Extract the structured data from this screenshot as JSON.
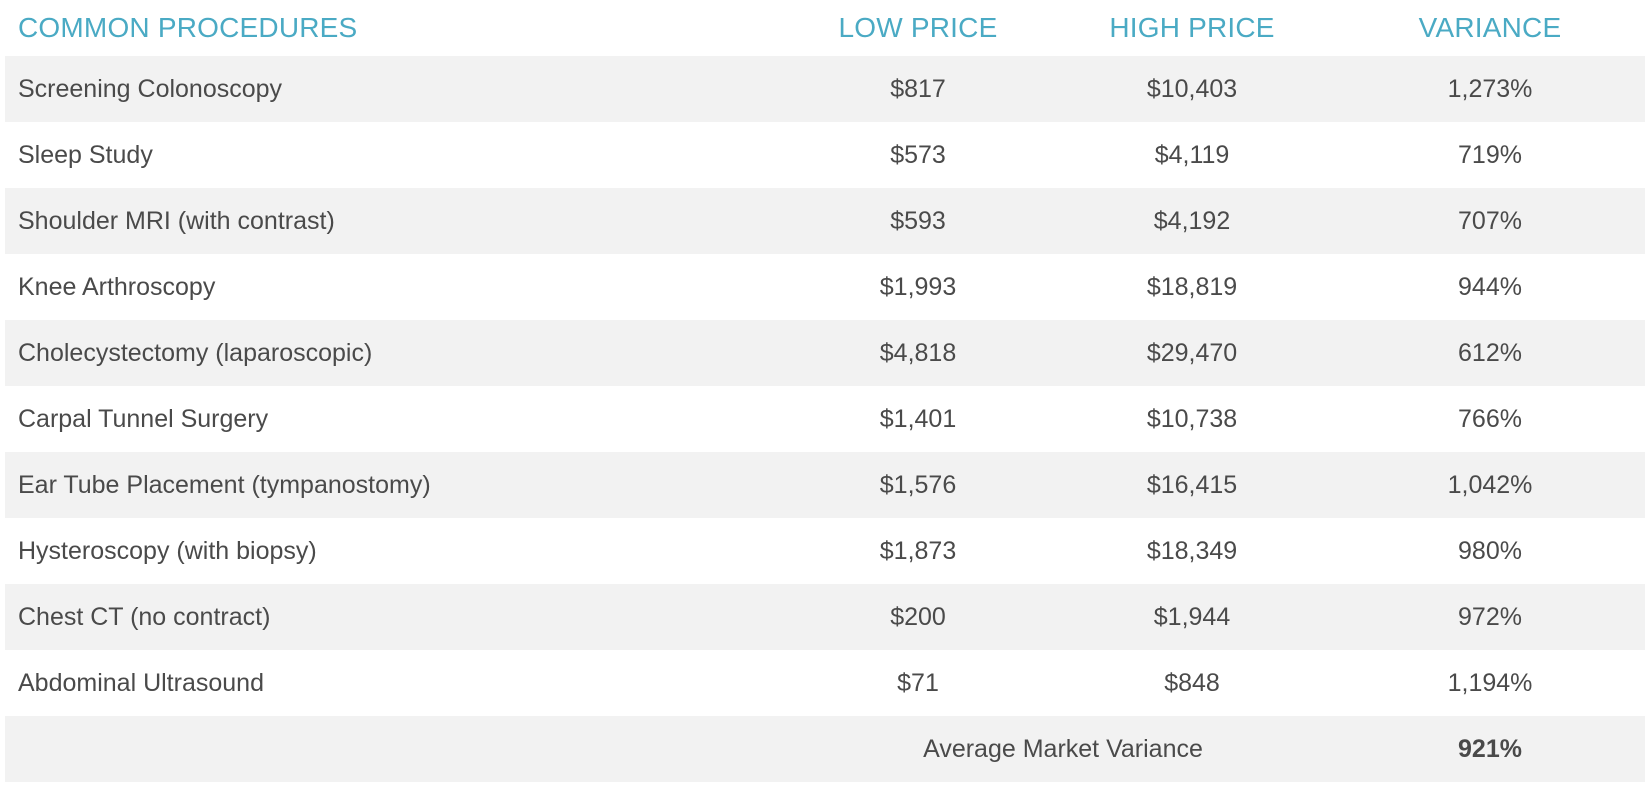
{
  "header": {
    "procedure": "COMMON PROCEDURES",
    "low": "LOW PRICE",
    "high": "HIGH PRICE",
    "variance": "VARIANCE"
  },
  "rows": [
    {
      "name": "Screening Colonoscopy",
      "low": "$817",
      "high": "$10,403",
      "variance": "1,273%"
    },
    {
      "name": "Sleep Study",
      "low": "$573",
      "high": "$4,119",
      "variance": "719%"
    },
    {
      "name": "Shoulder MRI (with contrast)",
      "low": "$593",
      "high": "$4,192",
      "variance": "707%"
    },
    {
      "name": "Knee Arthroscopy",
      "low": "$1,993",
      "high": "$18,819",
      "variance": "944%"
    },
    {
      "name": "Cholecystectomy (laparoscopic)",
      "low": "$4,818",
      "high": "$29,470",
      "variance": "612%"
    },
    {
      "name": "Carpal Tunnel Surgery",
      "low": "$1,401",
      "high": "$10,738",
      "variance": "766%"
    },
    {
      "name": "Ear Tube Placement (tympanostomy)",
      "low": "$1,576",
      "high": "$16,415",
      "variance": "1,042%"
    },
    {
      "name": "Hysteroscopy (with biopsy)",
      "low": "$1,873",
      "high": "$18,349",
      "variance": "980%"
    },
    {
      "name": "Chest CT (no contract)",
      "low": "$200",
      "high": "$1,944",
      "variance": "972%"
    },
    {
      "name": "Abdominal Ultrasound",
      "low": "$71",
      "high": "$848",
      "variance": "1,194%"
    }
  ],
  "footer": {
    "label": "Average Market Variance",
    "value": "921%"
  },
  "colors": {
    "header_text": "#4aaac4",
    "body_text": "#4a4a4a",
    "shaded_row": "#f2f2f2"
  }
}
